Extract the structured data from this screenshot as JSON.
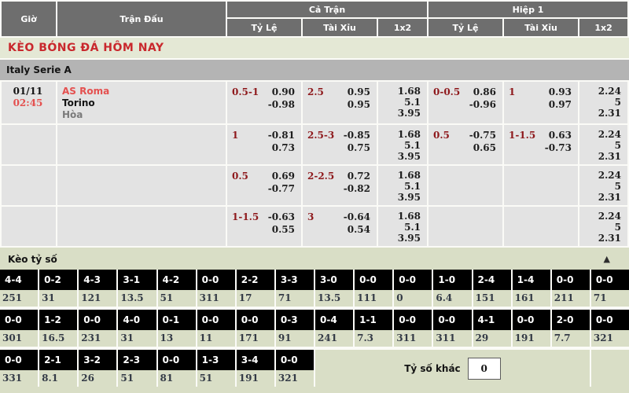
{
  "header": {
    "time": "Giờ",
    "match": "Trận Đấu",
    "full_time": "Cả Trận",
    "first_half": "Hiệp 1",
    "handicap": "Tỷ Lệ",
    "over_under": "Tài Xỉu",
    "one_x_two": "1x2"
  },
  "page_title": "KÈO BÓNG ĐÁ HÔM NAY",
  "league": "Italy Serie A",
  "match": {
    "date": "01/11",
    "time": "02:45",
    "home": "AS Roma",
    "away": "Torino",
    "draw": "Hòa"
  },
  "odds_rows": [
    {
      "ft_hc": {
        "line": "0.5-1",
        "o1": "0.90",
        "o2": "-0.98"
      },
      "ft_ou": {
        "line": "2.5",
        "o1": "0.95",
        "o2": "0.95"
      },
      "ft_1x2": [
        "1.68",
        "5.1",
        "3.95"
      ],
      "h1_hc": {
        "line": "0-0.5",
        "o1": "0.86",
        "o2": "-0.96"
      },
      "h1_ou": {
        "line": "1",
        "o1": "0.93",
        "o2": "0.97"
      },
      "h1_1x2": [
        "2.24",
        "5",
        "2.31"
      ]
    },
    {
      "ft_hc": {
        "line": "1",
        "o1": "-0.81",
        "o2": "0.73"
      },
      "ft_ou": {
        "line": "2.5-3",
        "o1": "-0.85",
        "o2": "0.75"
      },
      "ft_1x2": [
        "1.68",
        "5.1",
        "3.95"
      ],
      "h1_hc": {
        "line": "0.5",
        "o1": "-0.75",
        "o2": "0.65"
      },
      "h1_ou": {
        "line": "1-1.5",
        "o1": "0.63",
        "o2": "-0.73"
      },
      "h1_1x2": [
        "2.24",
        "5",
        "2.31"
      ]
    },
    {
      "ft_hc": {
        "line": "0.5",
        "o1": "0.69",
        "o2": "-0.77"
      },
      "ft_ou": {
        "line": "2-2.5",
        "o1": "0.72",
        "o2": "-0.82"
      },
      "ft_1x2": [
        "1.68",
        "5.1",
        "3.95"
      ],
      "h1_hc": null,
      "h1_ou": null,
      "h1_1x2": [
        "2.24",
        "5",
        "2.31"
      ]
    },
    {
      "ft_hc": {
        "line": "1-1.5",
        "o1": "-0.63",
        "o2": "0.55"
      },
      "ft_ou": {
        "line": "3",
        "o1": "-0.64",
        "o2": "0.54"
      },
      "ft_1x2": [
        "1.68",
        "5.1",
        "3.95"
      ],
      "h1_hc": null,
      "h1_ou": null,
      "h1_1x2": [
        "2.24",
        "5",
        "2.31"
      ]
    }
  ],
  "score_section": {
    "title": "Kèo tỷ số",
    "collapse_icon": "▲",
    "rows": [
      [
        {
          "score": "4-4",
          "odds": "251"
        },
        {
          "score": "0-2",
          "odds": "31"
        },
        {
          "score": "4-3",
          "odds": "121"
        },
        {
          "score": "3-1",
          "odds": "13.5"
        },
        {
          "score": "4-2",
          "odds": "51"
        },
        {
          "score": "0-0",
          "odds": "311"
        },
        {
          "score": "2-2",
          "odds": "17"
        },
        {
          "score": "3-3",
          "odds": "71"
        },
        {
          "score": "3-0",
          "odds": "13.5"
        },
        {
          "score": "0-0",
          "odds": "111"
        },
        {
          "score": "0-0",
          "odds": "0"
        },
        {
          "score": "1-0",
          "odds": "6.4"
        },
        {
          "score": "2-4",
          "odds": "151"
        },
        {
          "score": "1-4",
          "odds": "161"
        },
        {
          "score": "0-0",
          "odds": "211"
        },
        {
          "score": "0-0",
          "odds": "71"
        }
      ],
      [
        {
          "score": "0-0",
          "odds": "301"
        },
        {
          "score": "1-2",
          "odds": "16.5"
        },
        {
          "score": "0-0",
          "odds": "231"
        },
        {
          "score": "4-0",
          "odds": "31"
        },
        {
          "score": "0-1",
          "odds": "13"
        },
        {
          "score": "0-0",
          "odds": "11"
        },
        {
          "score": "0-0",
          "odds": "171"
        },
        {
          "score": "0-3",
          "odds": "91"
        },
        {
          "score": "0-4",
          "odds": "241"
        },
        {
          "score": "1-1",
          "odds": "7.3"
        },
        {
          "score": "0-0",
          "odds": "311"
        },
        {
          "score": "0-0",
          "odds": "311"
        },
        {
          "score": "4-1",
          "odds": "29"
        },
        {
          "score": "0-0",
          "odds": "191"
        },
        {
          "score": "2-0",
          "odds": "7.7"
        },
        {
          "score": "0-0",
          "odds": "321"
        }
      ],
      [
        {
          "score": "0-0",
          "odds": "331"
        },
        {
          "score": "2-1",
          "odds": "8.1"
        },
        {
          "score": "3-2",
          "odds": "26"
        },
        {
          "score": "2-3",
          "odds": "51"
        },
        {
          "score": "0-0",
          "odds": "81"
        },
        {
          "score": "1-3",
          "odds": "51"
        },
        {
          "score": "3-4",
          "odds": "191"
        },
        {
          "score": "0-0",
          "odds": "321"
        }
      ]
    ],
    "other_score_label": "Tỷ số khác",
    "other_score_value": "0"
  },
  "colors": {
    "header_bg": "#6e6e6e",
    "accent_red": "#c9282d",
    "handicap_red": "#8e191c",
    "team_red": "#e4504f",
    "title_bar_bg": "#e4e8d5",
    "score_section_bg": "#d9dec6",
    "league_bar_bg": "#b4b4b4",
    "odds_cell_bg": "#e3e3e3",
    "score_box_bg": "#000000"
  }
}
